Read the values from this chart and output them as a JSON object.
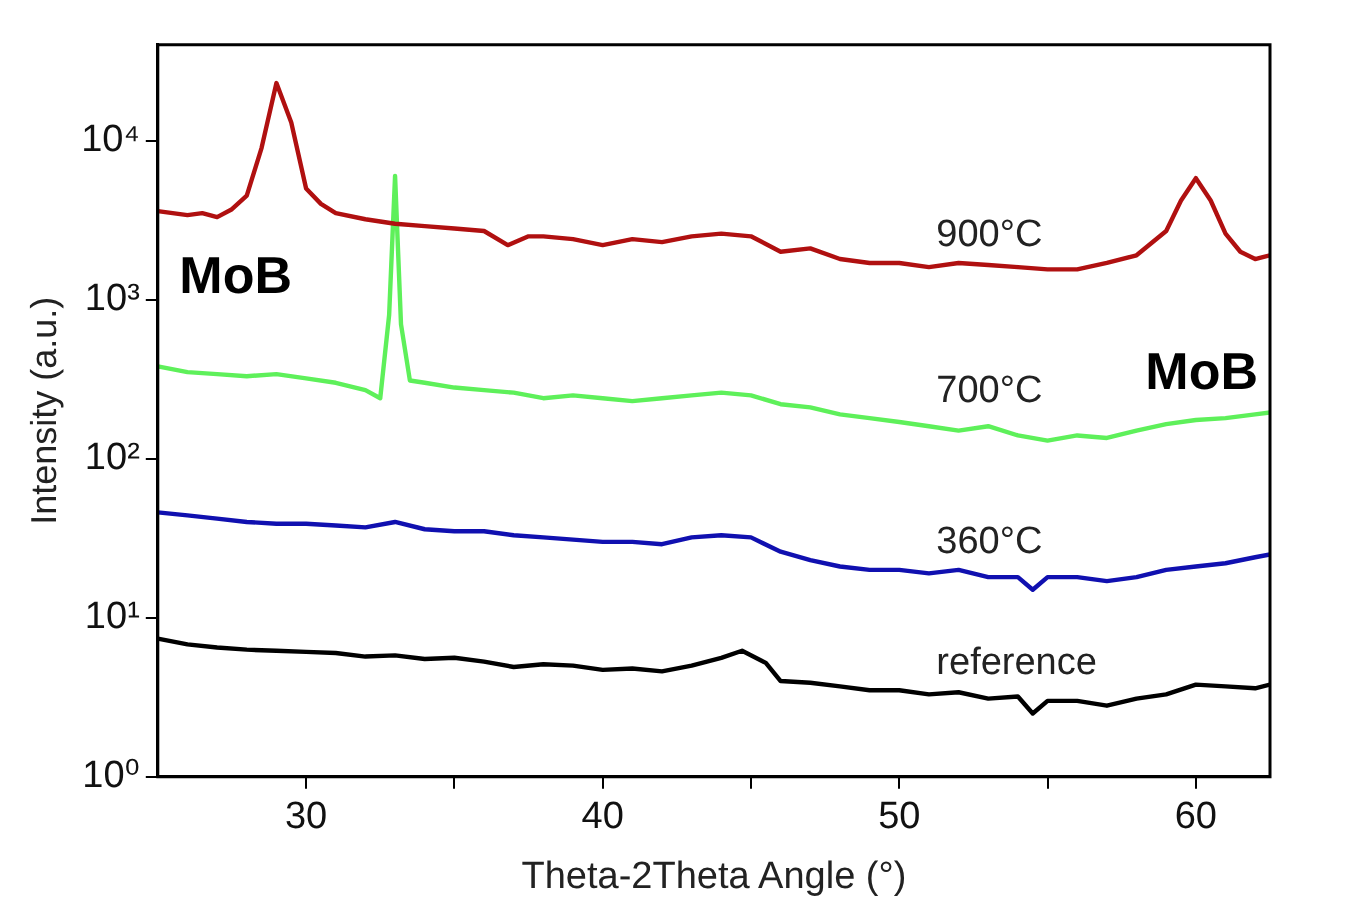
{
  "chart_data": {
    "type": "line",
    "xlabel": "Theta-2Theta Angle (°)",
    "ylabel": "Intensity (a.u.)",
    "log": "y",
    "grid": false,
    "legend": false,
    "marker": "none",
    "line_style": "solid",
    "xlim": [
      25,
      62.5
    ],
    "xticks": [
      30,
      {
        "value": 35,
        "label": null
      },
      40,
      {
        "value": 45,
        "label": null
      },
      50,
      {
        "value": 55,
        "label": null
      },
      60
    ],
    "ylim": [
      1,
      40000
    ],
    "yticks": [
      {
        "value": 1,
        "label": "10⁰"
      },
      {
        "value": 10,
        "label": "10¹"
      },
      {
        "value": 100,
        "label": "10²"
      },
      {
        "value": 1000,
        "label": "10³"
      },
      {
        "value": 10000,
        "label": "10⁴"
      }
    ],
    "annotations": [
      "MoB",
      "MoB"
    ],
    "series": [
      {
        "name": "900°C",
        "color": "#b01010",
        "x": [
          25,
          25.5,
          26,
          26.5,
          27,
          27.5,
          28,
          28.5,
          29,
          29.5,
          30,
          30.5,
          31,
          32,
          33,
          34,
          35,
          36,
          36.8,
          37.5,
          38,
          39,
          40,
          41,
          42,
          43,
          44,
          45,
          46,
          47,
          48,
          49,
          50,
          51,
          52,
          53,
          54,
          55,
          56,
          57,
          58,
          59,
          59.5,
          60,
          60.5,
          61,
          61.5,
          62,
          62.5
        ],
        "values": [
          3600,
          3500,
          3400,
          3500,
          3300,
          3700,
          4500,
          9000,
          23000,
          13000,
          5000,
          4000,
          3500,
          3200,
          3000,
          2900,
          2800,
          2700,
          2200,
          2500,
          2500,
          2400,
          2200,
          2400,
          2300,
          2500,
          2600,
          2500,
          2000,
          2100,
          1800,
          1700,
          1700,
          1600,
          1700,
          1650,
          1600,
          1550,
          1550,
          1700,
          1900,
          2700,
          4200,
          5800,
          4200,
          2600,
          2000,
          1800,
          1900
        ]
      },
      {
        "name": "700°C",
        "color": "#5ef05a",
        "x": [
          25,
          26,
          27,
          28,
          29,
          30,
          31,
          32,
          32.5,
          32.8,
          33,
          33.2,
          33.5,
          34,
          35,
          36,
          37,
          38,
          39,
          40,
          41,
          42,
          43,
          44,
          45,
          46,
          47,
          48,
          49,
          50,
          51,
          52,
          53,
          54,
          55,
          56,
          57,
          58,
          59,
          60,
          61,
          62,
          62.5
        ],
        "values": [
          380,
          350,
          340,
          330,
          340,
          320,
          300,
          270,
          240,
          800,
          6000,
          700,
          310,
          300,
          280,
          270,
          260,
          240,
          250,
          240,
          230,
          240,
          250,
          260,
          250,
          220,
          210,
          190,
          180,
          170,
          160,
          150,
          160,
          140,
          130,
          140,
          135,
          150,
          165,
          175,
          180,
          190,
          195
        ]
      },
      {
        "name": "360°C",
        "color": "#1010b0",
        "x": [
          25,
          26,
          27,
          28,
          29,
          30,
          31,
          32,
          33,
          34,
          35,
          36,
          37,
          38,
          39,
          40,
          41,
          42,
          43,
          44,
          45,
          46,
          47,
          48,
          49,
          50,
          51,
          52,
          53,
          54,
          54.5,
          55,
          56,
          57,
          58,
          59,
          60,
          61,
          62,
          62.5
        ],
        "values": [
          46,
          44,
          42,
          40,
          39,
          39,
          38,
          37,
          40,
          36,
          35,
          35,
          33,
          32,
          31,
          30,
          30,
          29,
          32,
          33,
          32,
          26,
          23,
          21,
          20,
          20,
          19,
          20,
          18,
          18,
          15,
          18,
          18,
          17,
          18,
          20,
          21,
          22,
          24,
          25
        ]
      },
      {
        "name": "reference",
        "color": "#000000",
        "x": [
          25,
          26,
          27,
          28,
          29,
          30,
          31,
          32,
          33,
          34,
          35,
          36,
          37,
          38,
          39,
          40,
          41,
          42,
          43,
          44,
          44.7,
          45.5,
          46,
          47,
          48,
          49,
          50,
          51,
          52,
          53,
          54,
          54.5,
          55,
          56,
          57,
          58,
          59,
          60,
          61,
          62,
          62.5
        ],
        "values": [
          7.4,
          6.8,
          6.5,
          6.3,
          6.2,
          6.1,
          6,
          5.7,
          5.8,
          5.5,
          5.6,
          5.3,
          4.9,
          5.1,
          5,
          4.7,
          4.8,
          4.6,
          5,
          5.6,
          6.2,
          5.2,
          4,
          3.9,
          3.7,
          3.5,
          3.5,
          3.3,
          3.4,
          3.1,
          3.2,
          2.5,
          3,
          3,
          2.8,
          3.1,
          3.3,
          3.8,
          3.7,
          3.6,
          3.8
        ]
      }
    ]
  }
}
